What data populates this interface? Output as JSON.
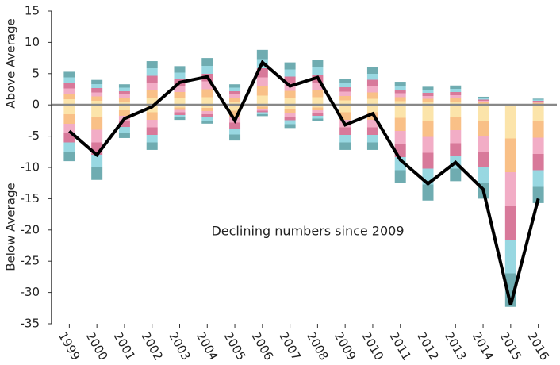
{
  "chart_data": {
    "type": "bar",
    "y_label_above": "Above Average",
    "y_label_below": "Below Average",
    "annotation": "Declining numbers since 2009",
    "categories": [
      "1999",
      "2000",
      "2001",
      "2002",
      "2003",
      "2004",
      "2005",
      "2006",
      "2007",
      "2008",
      "2009",
      "2010",
      "2011",
      "2012",
      "2013",
      "2014",
      "2015",
      "2016"
    ],
    "series": [
      {
        "colors": [
          "#fbe1a0",
          "#f8b97a",
          "#f0a4c0",
          "#d46a8f",
          "#8dd3de",
          "#5fa3a8"
        ],
        "values": [
          5.3,
          4,
          3.3,
          7,
          6.2,
          7.5,
          3.3,
          8.8,
          6.8,
          7.2,
          4.2,
          6,
          3.7,
          2.9,
          3.1,
          1.3,
          0,
          1
        ]
      },
      {
        "colors": [
          "#fbe1a0",
          "#f8b97a",
          "#f0a4c0",
          "#d46a8f",
          "#8dd3de",
          "#5fa3a8"
        ],
        "values": [
          -9,
          -12,
          -5.3,
          -7.2,
          -2.4,
          -3,
          -5.7,
          -1.8,
          -3.7,
          -2.6,
          -7.2,
          -7.2,
          -12.5,
          -15.3,
          -12.2,
          -15,
          -32.3,
          -15.7
        ]
      }
    ],
    "line": {
      "color": "#000000",
      "values": [
        -4.2,
        -8,
        -2.2,
        -0.3,
        3.6,
        4.5,
        -2.5,
        6.8,
        3,
        4.4,
        -3.2,
        -1.4,
        -8.8,
        -12.6,
        -9.2,
        -13.5,
        -32,
        -15
      ]
    },
    "ylim": [
      -35,
      15
    ],
    "yticks": [
      15,
      10,
      5,
      0,
      -5,
      -10,
      -15,
      -20,
      -25,
      -30,
      -35
    ]
  }
}
